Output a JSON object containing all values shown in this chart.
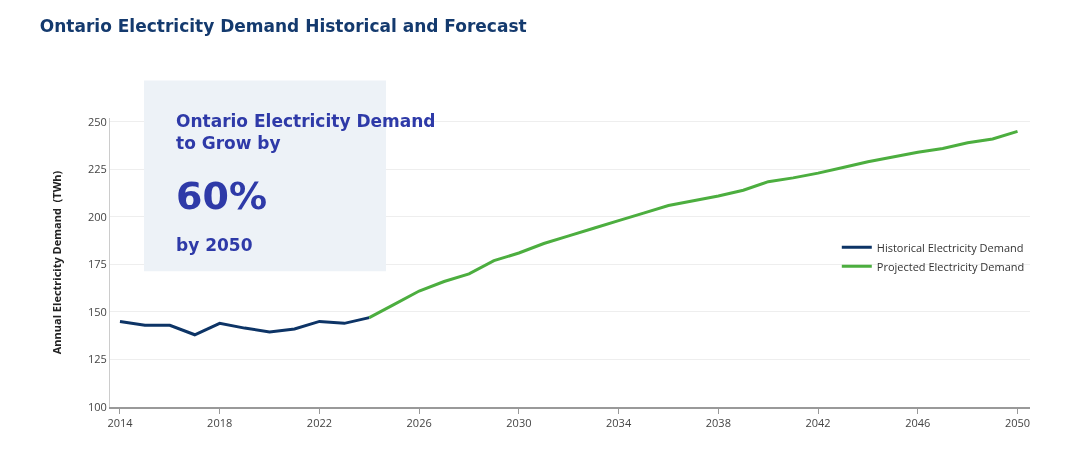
{
  "chart_data": {
    "type": "line",
    "title": "Ontario Electricity Demand Historical and Forecast",
    "ylabel": "Annual Electricity Demand  (TWh)",
    "annotations": [
      "Ontario Electricity Demand to Grow by",
      "60%",
      "by 2050"
    ],
    "series": [
      {
        "name": "Historical Electricity Demand",
        "color": "#0d3466",
        "x": [
          2014,
          2015,
          2016,
          2017,
          2018,
          2019,
          2020,
          2021,
          2022,
          2023,
          2024
        ],
        "values": [
          145,
          143,
          143,
          138,
          144,
          141.5,
          139.5,
          141,
          145,
          144,
          147
        ]
      },
      {
        "name": "Projected Electricity Demand",
        "color": "#4cae3f",
        "x": [
          2024,
          2025,
          2026,
          2027,
          2028,
          2029,
          2030,
          2031,
          2032,
          2033,
          2034,
          2035,
          2036,
          2037,
          2038,
          2039,
          2040,
          2041,
          2042,
          2043,
          2044,
          2045,
          2046,
          2047,
          2048,
          2049,
          2050
        ],
        "values": [
          147,
          154,
          161,
          166,
          170,
          177,
          181,
          186,
          190,
          194,
          198,
          202,
          206,
          208.5,
          211,
          214,
          218.5,
          220.5,
          223,
          226,
          229,
          231.5,
          234,
          236,
          239,
          241,
          245
        ]
      }
    ],
    "xlim": [
      2013.6,
      2050.5
    ],
    "xticks": [
      2014,
      2018,
      2022,
      2026,
      2030,
      2034,
      2038,
      2042,
      2046,
      2050
    ],
    "ylim": [
      100,
      252
    ],
    "yticks": [
      100,
      125,
      150,
      175,
      200,
      225,
      250
    ],
    "grid": "y",
    "legend": "right",
    "marker": "none",
    "line_style": "solid"
  }
}
